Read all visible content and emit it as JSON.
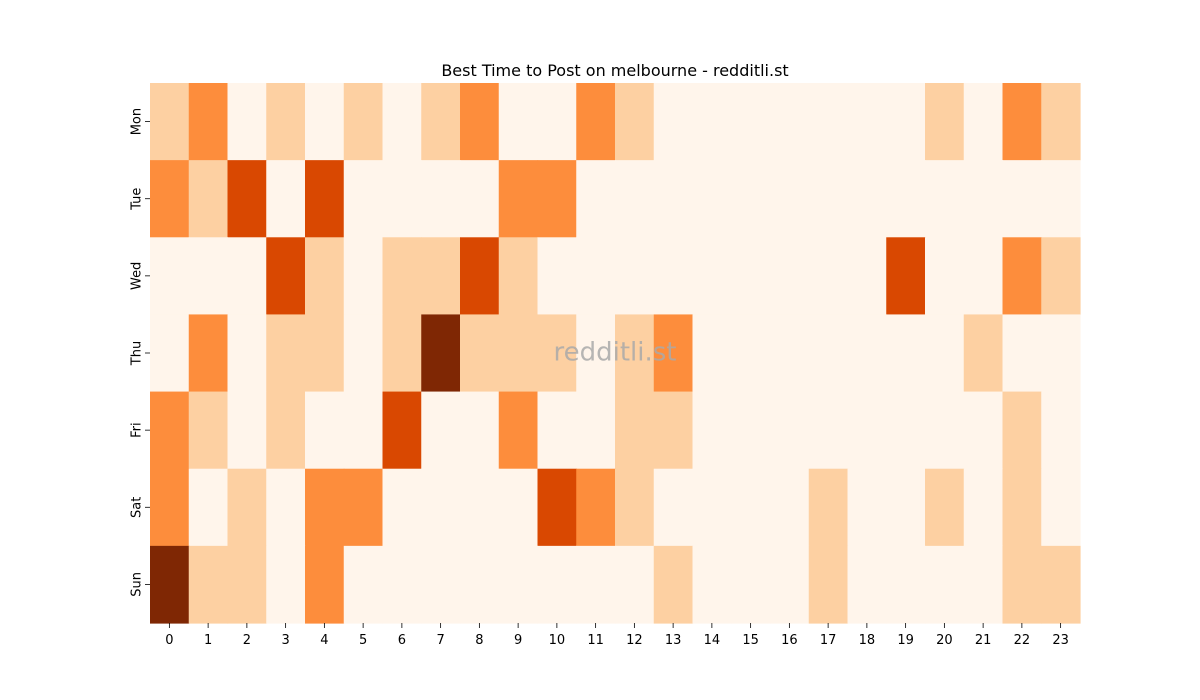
{
  "chart_data": {
    "type": "heatmap",
    "title": "Best Time to Post on melbourne - redditli.st",
    "xlabel": "",
    "ylabel": "",
    "x": [
      "0",
      "1",
      "2",
      "3",
      "4",
      "5",
      "6",
      "7",
      "8",
      "9",
      "10",
      "11",
      "12",
      "13",
      "14",
      "15",
      "16",
      "17",
      "18",
      "19",
      "20",
      "21",
      "22",
      "23"
    ],
    "y": [
      "Mon",
      "Tue",
      "Wed",
      "Thu",
      "Fri",
      "Sat",
      "Sun"
    ],
    "values": [
      [
        1,
        2,
        0,
        1,
        0,
        1,
        0,
        1,
        2,
        0,
        0,
        2,
        1,
        0,
        0,
        0,
        0,
        0,
        0,
        0,
        1,
        0,
        2,
        1
      ],
      [
        2,
        1,
        3,
        0,
        3,
        0,
        0,
        0,
        0,
        2,
        2,
        0,
        0,
        0,
        0,
        0,
        0,
        0,
        0,
        0,
        0,
        0,
        0,
        0
      ],
      [
        0,
        0,
        0,
        3,
        1,
        0,
        1,
        1,
        3,
        1,
        0,
        0,
        0,
        0,
        0,
        0,
        0,
        0,
        0,
        3,
        0,
        0,
        2,
        1
      ],
      [
        0,
        2,
        0,
        1,
        1,
        0,
        1,
        4,
        1,
        1,
        1,
        0,
        1,
        2,
        0,
        0,
        0,
        0,
        0,
        0,
        0,
        1,
        0,
        0
      ],
      [
        2,
        1,
        0,
        1,
        0,
        0,
        3,
        0,
        0,
        2,
        0,
        0,
        1,
        1,
        0,
        0,
        0,
        0,
        0,
        0,
        0,
        0,
        1,
        0
      ],
      [
        2,
        0,
        1,
        0,
        2,
        2,
        0,
        0,
        0,
        0,
        3,
        2,
        1,
        0,
        0,
        0,
        0,
        1,
        0,
        0,
        1,
        0,
        1,
        0
      ],
      [
        4,
        1,
        1,
        0,
        2,
        0,
        0,
        0,
        0,
        0,
        0,
        0,
        0,
        1,
        0,
        0,
        0,
        1,
        0,
        0,
        0,
        0,
        1,
        1
      ]
    ],
    "colormap": [
      "#fff5eb",
      "#fdd0a2",
      "#fd8d3c",
      "#d94801",
      "#7f2704"
    ],
    "grid": false,
    "legend": "none"
  },
  "watermark": "redditli.st"
}
